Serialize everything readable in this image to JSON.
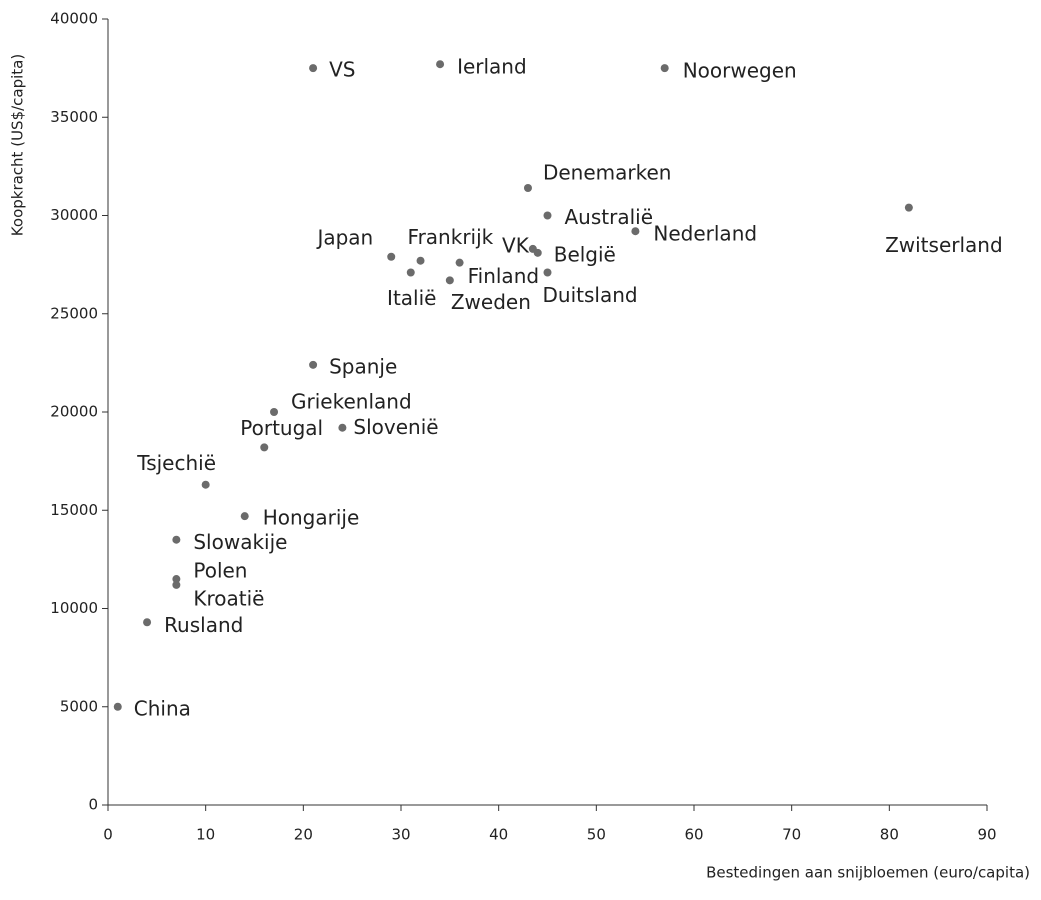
{
  "chart_data": {
    "type": "scatter",
    "x_label": "Bestedingen aan snijbloemen (euro/capita)",
    "y_label": "Koopkracht (US$/capita)",
    "point_labels": [
      "VS",
      "Ierland",
      "Noorwegen",
      "Denemarken",
      "Australië",
      "Nederland",
      "Zwitserland",
      "Japan",
      "Frankrijk",
      "Italië",
      "Finland",
      "Zweden",
      "VK",
      "België",
      "Duitsland",
      "Spanje",
      "Griekenland",
      "Slovenië",
      "Portugal",
      "Tsjechië",
      "Hongarije",
      "Slowakije",
      "Polen",
      "Kroatië",
      "Rusland",
      "China"
    ],
    "x": [
      21,
      34,
      57,
      43,
      45,
      54,
      82,
      29,
      32,
      31,
      36,
      35,
      43.5,
      44,
      45,
      21,
      17,
      24,
      16,
      10,
      14,
      7,
      7,
      7,
      4,
      1
    ],
    "values": [
      37500,
      37700,
      37500,
      31400,
      30000,
      29200,
      30400,
      27900,
      27700,
      27100,
      27600,
      26700,
      28300,
      28100,
      27100,
      22400,
      20000,
      19200,
      18200,
      16300,
      14700,
      13500,
      11500,
      11200,
      9300,
      5000
    ],
    "color": "#6b6b6b",
    "xlim": [
      0,
      90
    ],
    "xticks": [
      0,
      10,
      20,
      30,
      40,
      50,
      60,
      70,
      80,
      90
    ],
    "ylim": [
      0,
      40000
    ],
    "yticks": [
      0,
      5000,
      10000,
      15000,
      20000,
      25000,
      30000,
      35000,
      40000
    ],
    "grid": false
  }
}
